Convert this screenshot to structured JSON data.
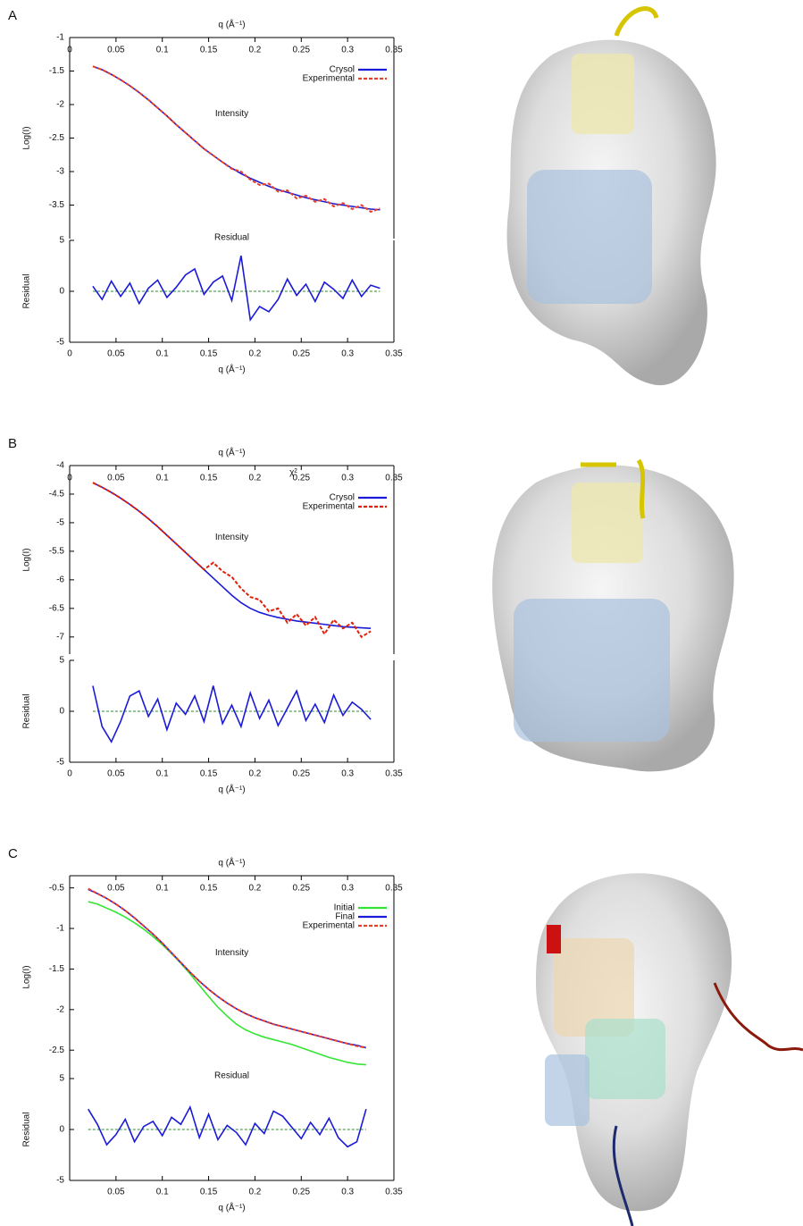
{
  "chart_data": [
    {
      "type": "line",
      "panel_label": "A",
      "x_label": "q (Å⁻¹)",
      "y_label": "Log(I)",
      "annotation": "Intensity",
      "x": [
        0.025,
        0.035,
        0.045,
        0.055,
        0.065,
        0.075,
        0.085,
        0.095,
        0.105,
        0.115,
        0.125,
        0.135,
        0.145,
        0.155,
        0.165,
        0.175,
        0.185,
        0.195,
        0.205,
        0.215,
        0.225,
        0.235,
        0.245,
        0.255,
        0.265,
        0.275,
        0.285,
        0.295,
        0.305,
        0.315,
        0.325,
        0.335
      ],
      "series": [
        {
          "name": "Crysol",
          "color": "#1a1ad8",
          "dash": false,
          "values": [
            -1.43,
            -1.48,
            -1.55,
            -1.63,
            -1.72,
            -1.82,
            -1.93,
            -2.05,
            -2.17,
            -2.3,
            -2.42,
            -2.54,
            -2.66,
            -2.76,
            -2.86,
            -2.95,
            -3.03,
            -3.1,
            -3.16,
            -3.22,
            -3.27,
            -3.31,
            -3.35,
            -3.39,
            -3.42,
            -3.45,
            -3.48,
            -3.5,
            -3.52,
            -3.54,
            -3.56,
            -3.57
          ]
        },
        {
          "name": "Experimental",
          "color": "#e8402a",
          "dash": true,
          "values": [
            -1.43,
            -1.48,
            -1.55,
            -1.63,
            -1.72,
            -1.82,
            -1.93,
            -2.05,
            -2.17,
            -2.3,
            -2.42,
            -2.54,
            -2.66,
            -2.76,
            -2.86,
            -2.96,
            -3.0,
            -3.12,
            -3.2,
            -3.18,
            -3.3,
            -3.28,
            -3.4,
            -3.36,
            -3.45,
            -3.41,
            -3.52,
            -3.47,
            -3.56,
            -3.5,
            -3.6,
            -3.55
          ]
        }
      ],
      "xlim": [
        0,
        0.35
      ],
      "xticks": [
        0,
        0.05,
        0.1,
        0.15,
        0.2,
        0.25,
        0.3,
        0.35
      ],
      "ylim": [
        -4,
        -1
      ],
      "yticks": [
        -1,
        -1.5,
        -2,
        -2.5,
        -3,
        -3.5
      ],
      "legend": "upper right"
    },
    {
      "type": "line",
      "x_label": "q (Å⁻¹)",
      "y_label": "Residual",
      "annotation": "Residual",
      "x": [
        0.025,
        0.035,
        0.045,
        0.055,
        0.065,
        0.075,
        0.085,
        0.095,
        0.105,
        0.115,
        0.125,
        0.135,
        0.145,
        0.155,
        0.165,
        0.175,
        0.185,
        0.195,
        0.205,
        0.215,
        0.225,
        0.235,
        0.245,
        0.255,
        0.265,
        0.275,
        0.285,
        0.295,
        0.305,
        0.315,
        0.325,
        0.335
      ],
      "series": [
        {
          "color": "#1a1ad8",
          "values": [
            0.5,
            -0.8,
            1,
            -0.5,
            0.8,
            -1.2,
            0.3,
            1.1,
            -0.6,
            0.4,
            1.6,
            2.2,
            -0.3,
            0.9,
            1.5,
            -0.9,
            3.5,
            -2.8,
            -1.5,
            -2,
            -0.8,
            1.2,
            -0.4,
            0.7,
            -1,
            0.9,
            0.2,
            -0.7,
            1.1,
            -0.5,
            0.6,
            0.3
          ]
        }
      ],
      "hline": {
        "value": 0,
        "color": "#2a8a2a"
      },
      "xlim": [
        0,
        0.35
      ],
      "xticks": [
        0,
        0.05,
        0.1,
        0.15,
        0.2,
        0.25,
        0.3,
        0.35
      ],
      "ylim": [
        -5,
        5
      ],
      "yticks": [
        -5,
        0,
        5
      ]
    },
    {
      "type": "line",
      "panel_label": "B",
      "x_label": "q (Å⁻¹)",
      "y_label": "Log(I)",
      "annotation": "Intensity",
      "annotation_2": "χ²",
      "x": [
        0.025,
        0.035,
        0.045,
        0.055,
        0.065,
        0.075,
        0.085,
        0.095,
        0.105,
        0.115,
        0.125,
        0.135,
        0.145,
        0.155,
        0.165,
        0.175,
        0.185,
        0.195,
        0.205,
        0.215,
        0.225,
        0.235,
        0.245,
        0.255,
        0.265,
        0.275,
        0.285,
        0.295,
        0.305,
        0.315,
        0.325
      ],
      "series": [
        {
          "name": "Crysol",
          "color": "#1a1ad8",
          "dash": false,
          "values": [
            -4.3,
            -4.38,
            -4.47,
            -4.57,
            -4.68,
            -4.8,
            -4.93,
            -5.07,
            -5.22,
            -5.37,
            -5.52,
            -5.67,
            -5.82,
            -5.97,
            -6.12,
            -6.27,
            -6.4,
            -6.5,
            -6.57,
            -6.62,
            -6.66,
            -6.69,
            -6.72,
            -6.74,
            -6.76,
            -6.78,
            -6.8,
            -6.82,
            -6.83,
            -6.84,
            -6.85
          ]
        },
        {
          "name": "Experimental",
          "color": "#e0200a",
          "dash": true,
          "values": [
            -4.3,
            -4.38,
            -4.47,
            -4.57,
            -4.68,
            -4.8,
            -4.93,
            -5.07,
            -5.22,
            -5.37,
            -5.52,
            -5.67,
            -5.82,
            -5.7,
            -5.85,
            -5.95,
            -6.15,
            -6.3,
            -6.35,
            -6.55,
            -6.5,
            -6.75,
            -6.6,
            -6.8,
            -6.65,
            -6.95,
            -6.7,
            -6.85,
            -6.75,
            -7.0,
            -6.9
          ]
        }
      ],
      "xlim": [
        0,
        0.35
      ],
      "xticks": [
        0,
        0.05,
        0.1,
        0.15,
        0.2,
        0.25,
        0.3,
        0.35
      ],
      "ylim": [
        -7.3,
        -4
      ],
      "yticks": [
        -4,
        -4.5,
        -5,
        -5.5,
        -6,
        -6.5,
        -7
      ],
      "legend": "upper right"
    },
    {
      "type": "line",
      "x_label": "q (Å⁻¹)",
      "y_label": "Residual",
      "x": [
        0.025,
        0.035,
        0.045,
        0.055,
        0.065,
        0.075,
        0.085,
        0.095,
        0.105,
        0.115,
        0.125,
        0.135,
        0.145,
        0.155,
        0.165,
        0.175,
        0.185,
        0.195,
        0.205,
        0.215,
        0.225,
        0.235,
        0.245,
        0.255,
        0.265,
        0.275,
        0.285,
        0.295,
        0.305,
        0.315,
        0.325
      ],
      "series": [
        {
          "color": "#1a1ad8",
          "values": [
            2.5,
            -1.5,
            -3,
            -1,
            1.5,
            2,
            -0.5,
            1.2,
            -1.8,
            0.8,
            -0.3,
            1.5,
            -1,
            2.5,
            -1.2,
            0.6,
            -1.5,
            1.8,
            -0.7,
            1.1,
            -1.4,
            0.3,
            2,
            -0.9,
            0.7,
            -1.1,
            1.6,
            -0.4,
            0.9,
            0.2,
            -0.8
          ]
        }
      ],
      "hline": {
        "value": 0,
        "color": "#2a8a2a"
      },
      "xlim": [
        0,
        0.35
      ],
      "xticks": [
        0,
        0.05,
        0.1,
        0.15,
        0.2,
        0.25,
        0.3,
        0.35
      ],
      "ylim": [
        -5,
        5
      ],
      "yticks": [
        -5,
        0,
        5
      ]
    },
    {
      "type": "line",
      "panel_label": "C",
      "x_label": "q (Å⁻¹)",
      "y_label": "Log(I)",
      "annotation": "Intensity",
      "x": [
        0.02,
        0.03,
        0.04,
        0.05,
        0.06,
        0.07,
        0.08,
        0.09,
        0.1,
        0.11,
        0.12,
        0.13,
        0.14,
        0.15,
        0.16,
        0.17,
        0.18,
        0.19,
        0.2,
        0.21,
        0.22,
        0.23,
        0.24,
        0.25,
        0.26,
        0.27,
        0.28,
        0.29,
        0.3,
        0.31,
        0.32
      ],
      "series": [
        {
          "name": "Initial",
          "color": "#33e633",
          "dash": false,
          "values": [
            -0.67,
            -0.7,
            -0.75,
            -0.8,
            -0.86,
            -0.93,
            -1.01,
            -1.1,
            -1.2,
            -1.31,
            -1.43,
            -1.56,
            -1.7,
            -1.84,
            -1.97,
            -2.08,
            -2.18,
            -2.25,
            -2.3,
            -2.34,
            -2.37,
            -2.4,
            -2.43,
            -2.47,
            -2.51,
            -2.55,
            -2.59,
            -2.62,
            -2.65,
            -2.67,
            -2.68
          ]
        },
        {
          "name": "Final",
          "color": "#1a1ad8",
          "dash": false,
          "values": [
            -0.52,
            -0.57,
            -0.63,
            -0.7,
            -0.78,
            -0.87,
            -0.97,
            -1.07,
            -1.18,
            -1.3,
            -1.42,
            -1.54,
            -1.65,
            -1.75,
            -1.84,
            -1.92,
            -1.99,
            -2.05,
            -2.1,
            -2.14,
            -2.18,
            -2.21,
            -2.24,
            -2.27,
            -2.3,
            -2.33,
            -2.36,
            -2.39,
            -2.42,
            -2.44,
            -2.47
          ]
        },
        {
          "name": "Experimental",
          "color": "#e8402a",
          "dash": true,
          "values": [
            -0.51,
            -0.57,
            -0.63,
            -0.7,
            -0.78,
            -0.87,
            -0.97,
            -1.07,
            -1.18,
            -1.3,
            -1.42,
            -1.54,
            -1.65,
            -1.75,
            -1.84,
            -1.92,
            -1.99,
            -2.05,
            -2.1,
            -2.14,
            -2.18,
            -2.21,
            -2.24,
            -2.27,
            -2.3,
            -2.33,
            -2.36,
            -2.39,
            -2.42,
            -2.45,
            -2.47
          ]
        }
      ],
      "xlim": [
        0,
        0.35
      ],
      "xticks": [
        0.05,
        0.1,
        0.15,
        0.2,
        0.25,
        0.3,
        0.35
      ],
      "ylim": [
        -2.85,
        -0.35
      ],
      "yticks": [
        -0.5,
        -1,
        -1.5,
        -2,
        -2.5
      ],
      "legend": "upper right"
    },
    {
      "type": "line",
      "x_label": "q (Å⁻¹)",
      "y_label": "Residual",
      "annotation": "Residual",
      "x": [
        0.02,
        0.03,
        0.04,
        0.05,
        0.06,
        0.07,
        0.08,
        0.09,
        0.1,
        0.11,
        0.12,
        0.13,
        0.14,
        0.15,
        0.16,
        0.17,
        0.18,
        0.19,
        0.2,
        0.21,
        0.22,
        0.23,
        0.24,
        0.25,
        0.26,
        0.27,
        0.28,
        0.29,
        0.3,
        0.31,
        0.32
      ],
      "series": [
        {
          "color": "#1a1ad8",
          "values": [
            2,
            0.5,
            -1.5,
            -0.5,
            1,
            -1.2,
            0.3,
            0.8,
            -0.6,
            1.2,
            0.5,
            2.2,
            -0.8,
            1.5,
            -1,
            0.4,
            -0.3,
            -1.5,
            0.6,
            -0.4,
            1.8,
            1.3,
            0.2,
            -0.9,
            0.7,
            -0.5,
            1.1,
            -0.8,
            -1.7,
            -1.2,
            2
          ]
        }
      ],
      "hline": {
        "value": 0,
        "color": "#2a8a2a"
      },
      "xlim": [
        0,
        0.35
      ],
      "xticks": [
        0.05,
        0.1,
        0.15,
        0.2,
        0.25,
        0.3,
        0.35
      ],
      "ylim": [
        -5,
        5
      ],
      "yticks": [
        -5,
        0,
        5
      ]
    }
  ]
}
